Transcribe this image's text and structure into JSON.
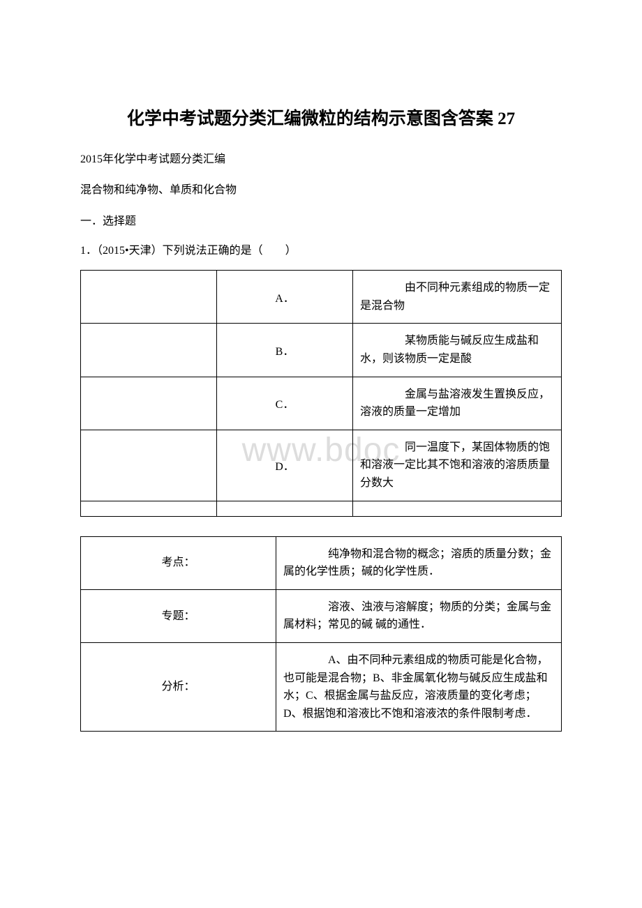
{
  "title": "化学中考试题分类汇编微粒的结构示意图含答案 27",
  "subtitle1": "2015年化学中考试题分类汇编",
  "subtitle2": "混合物和纯净物、单质和化合物",
  "section_header": "一．选择题",
  "question": "1．（2015•天津）下列说法正确的是（　　）",
  "watermark_text": "www.bdoc",
  "options_table": {
    "rows": [
      {
        "letter": "A．",
        "content": "　　由不同种元素组成的物质一定是混合物"
      },
      {
        "letter": "B．",
        "content": "　　某物质能与碱反应生成盐和水，则该物质一定是酸"
      },
      {
        "letter": "C．",
        "content": "　　金属与盐溶液发生置换反应，溶液的质量一定增加"
      },
      {
        "letter": "D．",
        "content": "　　同一温度下，某固体物质的饱和溶液一定比其不饱和溶液的溶质质量分数大"
      }
    ],
    "border_color": "#000000",
    "font_size": 16
  },
  "analysis_table": {
    "rows": [
      {
        "label": "考点：",
        "content": "　　纯净物和混合物的概念；溶质的质量分数；金属的化学性质；碱的化学性质．"
      },
      {
        "label": "专题：",
        "content": "　　溶液、浊液与溶解度；物质的分类；金属与金属材料；常见的碱 碱的通性．"
      },
      {
        "label": "分析：",
        "content": "　　A、由不同种元素组成的物质可能是化合物，也可能是混合物；B、非金属氧化物与碱反应生成盐和水；C、根据金属与盐反应，溶液质量的变化考虑；D、根据饱和溶液比不饱和溶液浓的条件限制考虑．"
      }
    ],
    "border_color": "#000000",
    "font_size": 16
  },
  "colors": {
    "background": "#ffffff",
    "text": "#000000",
    "watermark": "#dddddd",
    "border": "#000000"
  },
  "typography": {
    "title_fontsize": 25,
    "body_fontsize": 16,
    "watermark_fontsize": 48,
    "font_family": "SimSun"
  }
}
